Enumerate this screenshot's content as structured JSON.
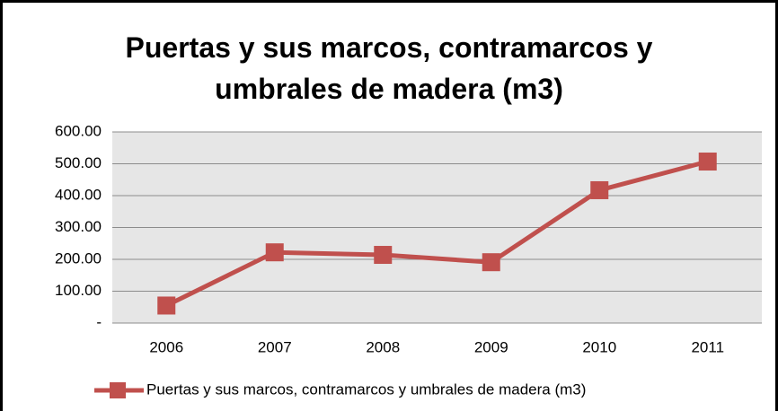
{
  "chart_data": {
    "type": "line",
    "title": "Puertas y sus marcos, contramarcos y umbrales de madera (m3)",
    "categories": [
      "2006",
      "2007",
      "2008",
      "2009",
      "2010",
      "2011"
    ],
    "series": [
      {
        "name": "Puertas y sus marcos, contramarcos y umbrales de madera (m3)",
        "color": "#c0504d",
        "values": [
          55,
          222,
          214,
          191,
          417,
          507
        ]
      }
    ],
    "ylim": [
      0,
      600
    ],
    "yticks": [
      {
        "value": 0,
        "label": "-"
      },
      {
        "value": 100,
        "label": "100.00"
      },
      {
        "value": 200,
        "label": "200.00"
      },
      {
        "value": 300,
        "label": "300.00"
      },
      {
        "value": 400,
        "label": "400.00"
      },
      {
        "value": 500,
        "label": "500.00"
      },
      {
        "value": 600,
        "label": "600.00"
      }
    ],
    "grid": true,
    "legend": "bottom"
  }
}
